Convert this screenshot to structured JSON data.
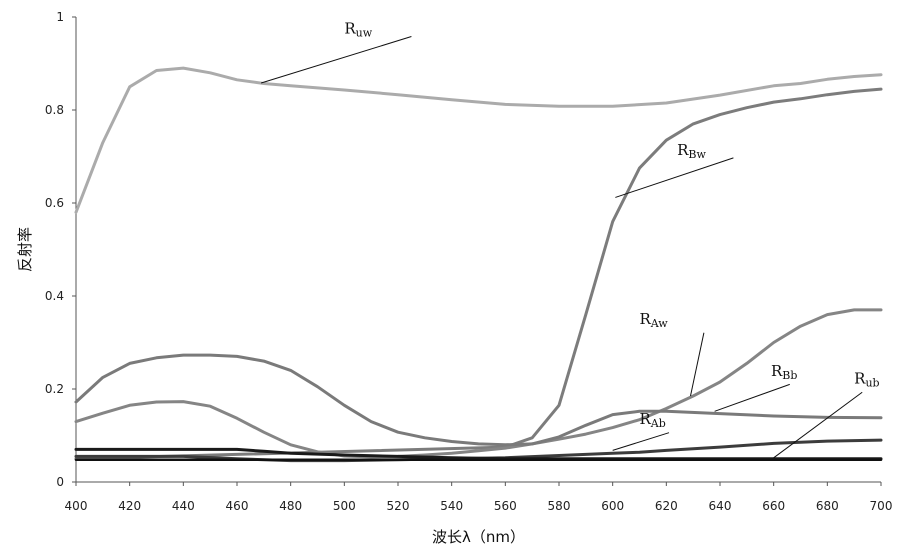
{
  "chart_data": {
    "type": "line",
    "title": "",
    "xlabel": "波长λ（nm）",
    "ylabel": "反射率",
    "xlim": [
      400,
      700
    ],
    "ylim": [
      0,
      1
    ],
    "x_ticks": [
      400,
      420,
      440,
      460,
      480,
      500,
      520,
      540,
      560,
      580,
      600,
      620,
      640,
      660,
      680,
      700
    ],
    "y_ticks": [
      0,
      0.2,
      0.4,
      0.6,
      0.8,
      1
    ],
    "y_tick_labels": [
      "0",
      "0.2",
      "0.4",
      "0.6",
      "0.8",
      "1"
    ],
    "grid": false,
    "legend": "none",
    "series": [
      {
        "color": "#ababab",
        "width": 3,
        "x": [
          400,
          410,
          420,
          430,
          440,
          450,
          460,
          470,
          480,
          500,
          520,
          540,
          560,
          580,
          600,
          620,
          640,
          660,
          670,
          680,
          690,
          700
        ],
        "values": [
          0.58,
          0.73,
          0.85,
          0.885,
          0.89,
          0.88,
          0.865,
          0.857,
          0.852,
          0.843,
          0.833,
          0.822,
          0.812,
          0.808,
          0.808,
          0.815,
          0.832,
          0.852,
          0.857,
          0.866,
          0.872,
          0.876
        ]
      },
      {
        "color": "#7c7c7c",
        "width": 3,
        "x": [
          400,
          560,
          570,
          580,
          590,
          600,
          610,
          620,
          630,
          640,
          650,
          660,
          670,
          680,
          690,
          700
        ],
        "values": [
          0.05,
          0.075,
          0.095,
          0.165,
          0.36,
          0.56,
          0.675,
          0.735,
          0.77,
          0.79,
          0.805,
          0.817,
          0.824,
          0.833,
          0.84,
          0.845
        ]
      },
      {
        "color": "#858585",
        "width": 3,
        "x": [
          400,
          410,
          420,
          430,
          440,
          450,
          460,
          470,
          480,
          490,
          500,
          510,
          520,
          530,
          540,
          550,
          560,
          570,
          580,
          590,
          600,
          610,
          620,
          630,
          640,
          650,
          660,
          670,
          680,
          690,
          700
        ],
        "values": [
          0.13,
          0.148,
          0.165,
          0.172,
          0.173,
          0.163,
          0.137,
          0.107,
          0.08,
          0.065,
          0.056,
          0.054,
          0.055,
          0.058,
          0.062,
          0.067,
          0.073,
          0.082,
          0.092,
          0.103,
          0.117,
          0.134,
          0.158,
          0.185,
          0.215,
          0.255,
          0.3,
          0.335,
          0.36,
          0.37,
          0.37
        ]
      },
      {
        "color": "#7a7a7a",
        "width": 3,
        "x": [
          400,
          410,
          420,
          430,
          440,
          450,
          460,
          470,
          480,
          490,
          500,
          510,
          520,
          530,
          540,
          550,
          560,
          570,
          580,
          590,
          600,
          610,
          620,
          640,
          660,
          680,
          700
        ],
        "values": [
          0.172,
          0.225,
          0.255,
          0.267,
          0.273,
          0.273,
          0.27,
          0.26,
          0.24,
          0.205,
          0.165,
          0.13,
          0.107,
          0.095,
          0.087,
          0.082,
          0.08,
          0.082,
          0.097,
          0.122,
          0.145,
          0.152,
          0.152,
          0.147,
          0.142,
          0.139,
          0.138
        ]
      },
      {
        "color": "#3c3c3c",
        "width": 3,
        "x": [
          400,
          440,
          460,
          480,
          500,
          520,
          540,
          560,
          580,
          600,
          610,
          620,
          640,
          660,
          680,
          700
        ],
        "values": [
          0.055,
          0.055,
          0.05,
          0.046,
          0.046,
          0.048,
          0.05,
          0.052,
          0.057,
          0.062,
          0.064,
          0.068,
          0.075,
          0.083,
          0.088,
          0.09
        ]
      },
      {
        "color": "#1a1a1a",
        "width": 3,
        "x": [
          400,
          420,
          440,
          460,
          470,
          480,
          500,
          520,
          540,
          560,
          580,
          600,
          620,
          640,
          660,
          680,
          700
        ],
        "values": [
          0.07,
          0.07,
          0.07,
          0.07,
          0.066,
          0.062,
          0.058,
          0.055,
          0.052,
          0.05,
          0.05,
          0.05,
          0.05,
          0.05,
          0.05,
          0.05,
          0.05
        ]
      },
      {
        "color": "#111111",
        "width": 2.5,
        "x": [
          400,
          500,
          600,
          700
        ],
        "values": [
          0.048,
          0.048,
          0.048,
          0.048
        ]
      }
    ],
    "annotations": [
      {
        "main": "R",
        "sub": "uw",
        "text_at": [
          500,
          0.965
        ],
        "point_at": [
          469,
          0.858
        ],
        "line_from": [
          525,
          0.958
        ]
      },
      {
        "main": "R",
        "sub": "Bw",
        "text_at": [
          624,
          0.703
        ],
        "point_at": [
          601,
          0.612
        ],
        "line_from": [
          645,
          0.697
        ]
      },
      {
        "main": "R",
        "sub": "Aw",
        "text_at": [
          610,
          0.34
        ],
        "point_at": [
          629,
          0.185
        ],
        "line_from": [
          634,
          0.321
        ]
      },
      {
        "main": "R",
        "sub": "Bb",
        "text_at": [
          659,
          0.228
        ],
        "point_at": [
          638,
          0.152
        ],
        "line_from": [
          666,
          0.21
        ]
      },
      {
        "main": "R",
        "sub": "ub",
        "text_at": [
          690,
          0.212
        ],
        "point_at": [
          660,
          0.052
        ],
        "line_from": [
          693,
          0.193
        ]
      },
      {
        "main": "R",
        "sub": "Ab",
        "text_at": [
          610,
          0.125
        ],
        "point_at": [
          600,
          0.068
        ],
        "line_from": [
          621,
          0.106
        ]
      }
    ]
  }
}
